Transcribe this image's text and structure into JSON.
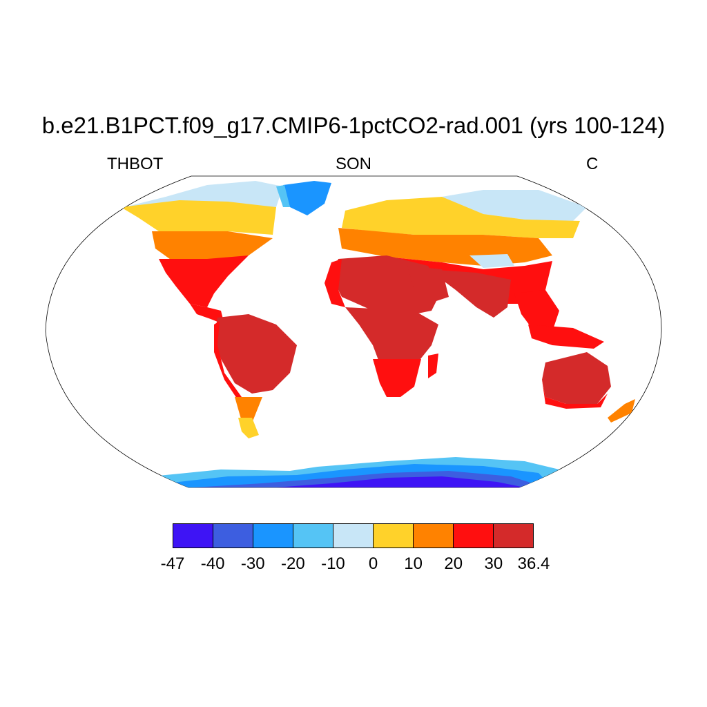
{
  "title": "b.e21.B1PCT.f09_g17.CMIP6-1pctCO2-rad.001 (yrs 100-124)",
  "variable": "THBOT",
  "season": "SON",
  "units": "C",
  "colorbar": {
    "colors": [
      "#3e14f5",
      "#3d5ee0",
      "#1a95ff",
      "#55c4f5",
      "#c8e6f7",
      "#ffd22a",
      "#ff8200",
      "#ff0f0f",
      "#d42a2a"
    ],
    "labels": [
      "-47",
      "-40",
      "-30",
      "-20",
      "-10",
      "0",
      "10",
      "20",
      "30",
      "36.4"
    ]
  },
  "map": {
    "projection": "Robinson",
    "field": "seasonal mean bottom-level air temperature over land"
  }
}
